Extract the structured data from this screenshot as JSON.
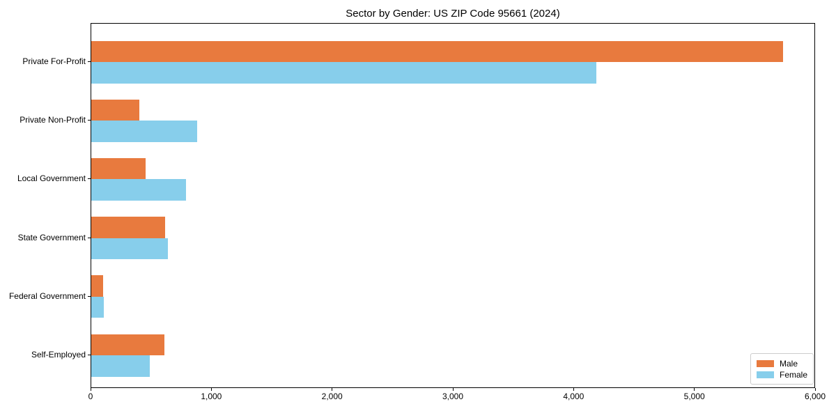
{
  "chart_data": {
    "type": "bar",
    "orientation": "horizontal",
    "title": "Sector by Gender: US ZIP Code 95661 (2024)",
    "categories": [
      "Private For-Profit",
      "Private Non-Profit",
      "Local Government",
      "State Government",
      "Federal Government",
      "Self-Employed"
    ],
    "series": [
      {
        "name": "Male",
        "color": "#E87A3E",
        "values": [
          5730,
          400,
          450,
          610,
          98,
          605
        ]
      },
      {
        "name": "Female",
        "color": "#87CEEB",
        "values": [
          4180,
          875,
          785,
          635,
          105,
          485
        ]
      }
    ],
    "xlabel": "",
    "ylabel": "",
    "xlim": [
      0,
      6000
    ],
    "x_ticks": [
      0,
      1000,
      2000,
      3000,
      4000,
      5000,
      6000
    ],
    "x_tick_labels": [
      "0",
      "1,000",
      "2,000",
      "3,000",
      "4,000",
      "5,000",
      "6,000"
    ],
    "grid": false,
    "legend_position": "lower right",
    "colors": {
      "axis": "#000000",
      "legend_border": "#cccccc",
      "background": "#ffffff"
    }
  }
}
